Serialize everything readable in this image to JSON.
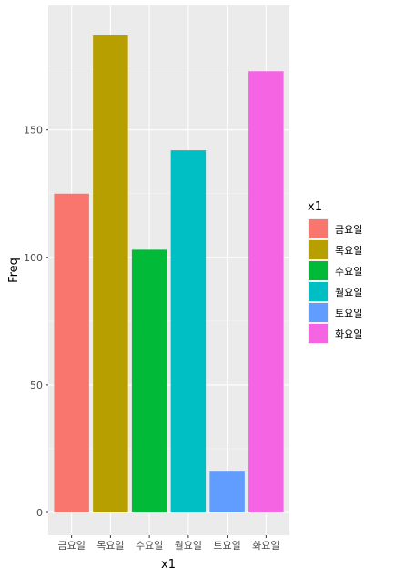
{
  "chart_data": {
    "type": "bar",
    "categories": [
      "금요일",
      "목요일",
      "수요일",
      "월요일",
      "토요일",
      "화요일"
    ],
    "values": [
      125,
      187,
      103,
      142,
      16,
      173
    ],
    "colors": [
      "#F8766D",
      "#B79F00",
      "#00BA38",
      "#00BFC4",
      "#619CFF",
      "#F564E3"
    ],
    "xlabel": "x1",
    "ylabel": "Freq",
    "ylim": [
      0,
      197
    ],
    "yticks": [
      0,
      50,
      100,
      150
    ],
    "ytick_labels": [
      "0",
      "50",
      "100",
      "150"
    ],
    "grid": true,
    "legend": {
      "title": "x1",
      "placement": "right",
      "entries": [
        "금요일",
        "목요일",
        "수요일",
        "월요일",
        "토요일",
        "화요일"
      ]
    }
  }
}
